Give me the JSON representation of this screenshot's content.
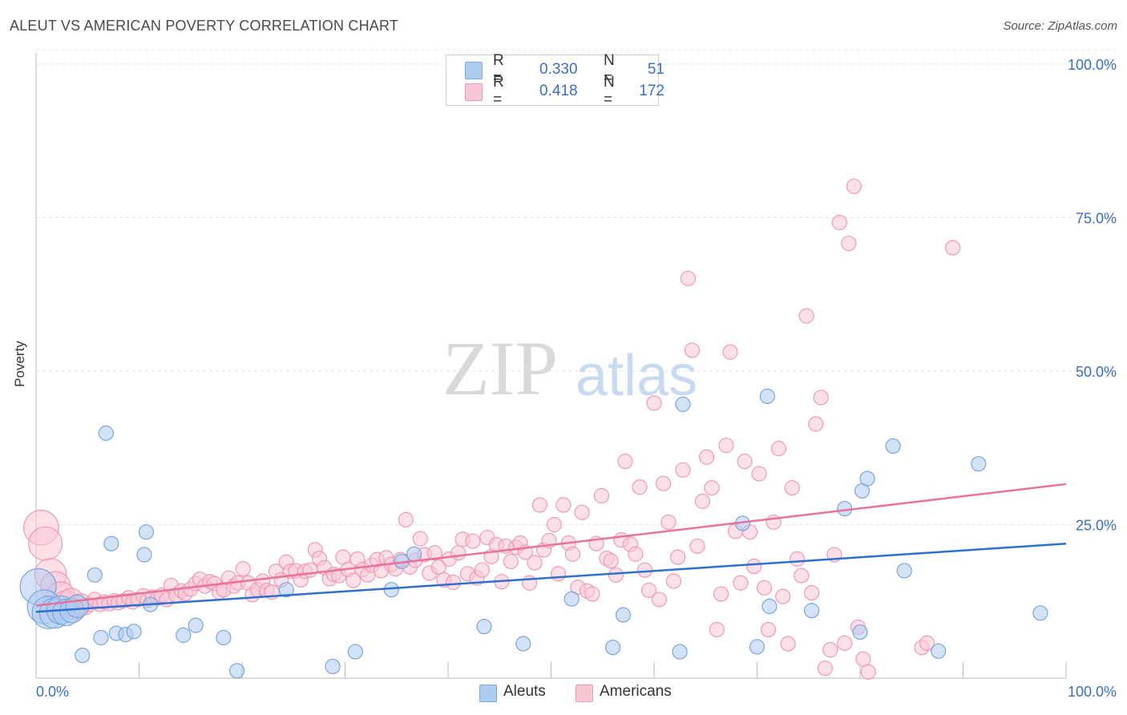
{
  "title": "ALEUT VS AMERICAN POVERTY CORRELATION CHART",
  "source": "Source: ZipAtlas.com",
  "legend": [
    {
      "r_label": "R =",
      "r_value": "0.330",
      "n_label": "N =",
      "n_value": "51",
      "color": "#aecbf0",
      "border": "#7aa6dc"
    },
    {
      "r_label": "R =",
      "r_value": "0.418",
      "n_label": "N =",
      "n_value": "172",
      "color": "#f9c6d6",
      "border": "#ee9ab5"
    }
  ],
  "bottom_legend": [
    "Aleuts",
    "Americans"
  ],
  "watermark": {
    "zip": "ZIP",
    "atlas": "atlas"
  },
  "chart_data": {
    "type": "scatter",
    "title": "ALEUT VS AMERICAN POVERTY CORRELATION CHART",
    "xlabel": "",
    "ylabel": "Poverty",
    "xlim": [
      0,
      100
    ],
    "ylim": [
      0,
      100
    ],
    "x_tick_labels": [
      "0.0%",
      "100.0%"
    ],
    "y_tick_labels": [
      "25.0%",
      "50.0%",
      "75.0%",
      "100.0%"
    ],
    "y_ticks": [
      25,
      50,
      75,
      100
    ],
    "grid": true,
    "legend_position": "top-center",
    "series": [
      {
        "name": "Aleuts",
        "color": "#7aa6dc",
        "fill": "#aecbf0",
        "line_color": "#2f6fcf",
        "trend": {
          "x": [
            0,
            100
          ],
          "y": [
            10.8,
            21.9
          ]
        },
        "points": [
          [
            0.2,
            14.9
          ],
          [
            0.8,
            11.6
          ],
          [
            1.2,
            10.7
          ],
          [
            1.8,
            10.6
          ],
          [
            2.4,
            11.1
          ],
          [
            2.9,
            10.7
          ],
          [
            3.5,
            11.0
          ],
          [
            4.0,
            11.7
          ],
          [
            4.5,
            3.7
          ],
          [
            5.7,
            16.8
          ],
          [
            6.3,
            6.6
          ],
          [
            6.8,
            39.9
          ],
          [
            7.3,
            21.9
          ],
          [
            7.8,
            7.3
          ],
          [
            8.7,
            7.1
          ],
          [
            9.5,
            7.6
          ],
          [
            10.5,
            20.1
          ],
          [
            10.7,
            23.8
          ],
          [
            11.1,
            12.0
          ],
          [
            14.3,
            7.0
          ],
          [
            15.5,
            8.6
          ],
          [
            18.2,
            6.6
          ],
          [
            19.5,
            1.2
          ],
          [
            24.3,
            14.4
          ],
          [
            28.8,
            1.9
          ],
          [
            31.0,
            4.3
          ],
          [
            34.5,
            14.4
          ],
          [
            35.5,
            19.0
          ],
          [
            36.7,
            20.2
          ],
          [
            43.5,
            8.4
          ],
          [
            47.3,
            5.6
          ],
          [
            52.0,
            12.9
          ],
          [
            56.0,
            5.0
          ],
          [
            57.0,
            10.3
          ],
          [
            62.5,
            4.3
          ],
          [
            62.8,
            44.6
          ],
          [
            68.6,
            25.2
          ],
          [
            70.0,
            5.1
          ],
          [
            71.0,
            45.9
          ],
          [
            71.2,
            11.7
          ],
          [
            75.3,
            11.0
          ],
          [
            78.5,
            27.6
          ],
          [
            80.0,
            7.5
          ],
          [
            80.2,
            30.5
          ],
          [
            80.7,
            32.5
          ],
          [
            83.2,
            37.8
          ],
          [
            84.3,
            17.5
          ],
          [
            87.6,
            4.4
          ],
          [
            91.5,
            34.9
          ],
          [
            97.5,
            10.6
          ]
        ]
      },
      {
        "name": "Americans",
        "color": "#ee9ab5",
        "fill": "#f9c6d6",
        "line_color": "#e8729a",
        "trend": {
          "x": [
            0,
            100
          ],
          "y": [
            11.8,
            31.6
          ]
        },
        "points": [
          [
            0.5,
            24.5
          ],
          [
            0.9,
            21.9
          ],
          [
            1.4,
            16.9
          ],
          [
            1.9,
            14.9
          ],
          [
            2.4,
            13.4
          ],
          [
            2.9,
            12.1
          ],
          [
            3.4,
            12.6
          ],
          [
            3.8,
            11.4
          ],
          [
            4.3,
            12.0
          ],
          [
            4.8,
            11.5
          ],
          [
            5.2,
            12.0
          ],
          [
            5.7,
            12.8
          ],
          [
            6.2,
            12.0
          ],
          [
            6.6,
            12.4
          ],
          [
            7.1,
            12.1
          ],
          [
            7.6,
            12.6
          ],
          [
            8.0,
            12.3
          ],
          [
            8.5,
            12.6
          ],
          [
            9.0,
            13.1
          ],
          [
            9.4,
            12.4
          ],
          [
            9.9,
            12.8
          ],
          [
            10.4,
            13.4
          ],
          [
            10.8,
            12.7
          ],
          [
            11.3,
            13.2
          ],
          [
            11.8,
            13.0
          ],
          [
            12.2,
            13.5
          ],
          [
            12.7,
            12.8
          ],
          [
            13.1,
            15.1
          ],
          [
            13.6,
            13.5
          ],
          [
            14.1,
            14.2
          ],
          [
            14.5,
            13.8
          ],
          [
            15.0,
            14.5
          ],
          [
            15.5,
            15.4
          ],
          [
            15.9,
            16.1
          ],
          [
            16.4,
            15.0
          ],
          [
            16.9,
            15.7
          ],
          [
            17.3,
            15.4
          ],
          [
            17.8,
            14.0
          ],
          [
            18.2,
            14.4
          ],
          [
            18.7,
            16.3
          ],
          [
            19.2,
            15.0
          ],
          [
            19.6,
            15.5
          ],
          [
            20.1,
            17.8
          ],
          [
            20.6,
            15.5
          ],
          [
            21.0,
            13.6
          ],
          [
            21.5,
            14.4
          ],
          [
            22.0,
            15.8
          ],
          [
            22.4,
            14.3
          ],
          [
            22.9,
            14.0
          ],
          [
            23.3,
            17.4
          ],
          [
            23.8,
            16.0
          ],
          [
            24.3,
            18.9
          ],
          [
            24.7,
            17.4
          ],
          [
            25.2,
            17.5
          ],
          [
            25.7,
            16.0
          ],
          [
            26.1,
            17.4
          ],
          [
            26.6,
            17.6
          ],
          [
            27.1,
            20.9
          ],
          [
            27.5,
            19.5
          ],
          [
            28.0,
            18.0
          ],
          [
            28.5,
            16.2
          ],
          [
            28.9,
            16.9
          ],
          [
            29.4,
            16.7
          ],
          [
            29.8,
            19.7
          ],
          [
            30.3,
            17.7
          ],
          [
            30.8,
            15.9
          ],
          [
            31.2,
            19.4
          ],
          [
            31.7,
            17.7
          ],
          [
            32.2,
            16.8
          ],
          [
            32.6,
            18.4
          ],
          [
            33.1,
            19.3
          ],
          [
            33.5,
            17.5
          ],
          [
            34.0,
            19.6
          ],
          [
            34.5,
            18.5
          ],
          [
            34.9,
            17.8
          ],
          [
            35.4,
            19.3
          ],
          [
            35.9,
            25.8
          ],
          [
            36.3,
            18.1
          ],
          [
            36.8,
            19.2
          ],
          [
            37.3,
            22.7
          ],
          [
            37.7,
            20.1
          ],
          [
            38.2,
            17.1
          ],
          [
            38.7,
            20.4
          ],
          [
            39.1,
            18.1
          ],
          [
            39.6,
            16.0
          ],
          [
            40.1,
            19.4
          ],
          [
            40.5,
            15.6
          ],
          [
            41.0,
            20.4
          ],
          [
            41.4,
            22.6
          ],
          [
            41.9,
            17.0
          ],
          [
            42.4,
            22.3
          ],
          [
            42.8,
            16.3
          ],
          [
            43.3,
            17.6
          ],
          [
            43.8,
            22.9
          ],
          [
            44.2,
            19.8
          ],
          [
            44.7,
            21.7
          ],
          [
            45.2,
            15.7
          ],
          [
            45.6,
            21.5
          ],
          [
            46.1,
            19.0
          ],
          [
            46.6,
            21.3
          ],
          [
            47.0,
            22.0
          ],
          [
            47.5,
            20.5
          ],
          [
            47.9,
            15.5
          ],
          [
            48.4,
            18.8
          ],
          [
            48.9,
            28.2
          ],
          [
            49.3,
            20.9
          ],
          [
            49.8,
            22.4
          ],
          [
            50.3,
            25.0
          ],
          [
            50.7,
            17.0
          ],
          [
            51.2,
            28.2
          ],
          [
            51.7,
            22.0
          ],
          [
            52.1,
            20.2
          ],
          [
            52.6,
            14.8
          ],
          [
            53.0,
            27.0
          ],
          [
            53.5,
            14.2
          ],
          [
            54.0,
            13.7
          ],
          [
            54.4,
            21.9
          ],
          [
            54.9,
            29.7
          ],
          [
            55.4,
            19.5
          ],
          [
            55.8,
            19.1
          ],
          [
            56.3,
            16.8
          ],
          [
            56.8,
            22.5
          ],
          [
            57.2,
            35.3
          ],
          [
            57.7,
            21.8
          ],
          [
            58.2,
            20.2
          ],
          [
            58.6,
            31.1
          ],
          [
            59.1,
            17.6
          ],
          [
            59.5,
            14.3
          ],
          [
            60.0,
            44.8
          ],
          [
            60.5,
            12.8
          ],
          [
            60.9,
            31.7
          ],
          [
            61.4,
            25.4
          ],
          [
            61.9,
            15.8
          ],
          [
            62.3,
            19.7
          ],
          [
            62.8,
            33.9
          ],
          [
            63.3,
            65.1
          ],
          [
            63.7,
            53.4
          ],
          [
            64.2,
            21.5
          ],
          [
            64.7,
            28.8
          ],
          [
            65.1,
            36.0
          ],
          [
            65.6,
            31.0
          ],
          [
            66.1,
            7.9
          ],
          [
            66.5,
            13.7
          ],
          [
            67.0,
            37.9
          ],
          [
            67.4,
            53.1
          ],
          [
            67.9,
            23.9
          ],
          [
            68.4,
            15.5
          ],
          [
            68.8,
            35.3
          ],
          [
            69.3,
            23.8
          ],
          [
            69.7,
            18.2
          ],
          [
            70.2,
            33.3
          ],
          [
            70.7,
            14.7
          ],
          [
            71.1,
            7.9
          ],
          [
            71.6,
            25.4
          ],
          [
            72.1,
            37.4
          ],
          [
            72.5,
            13.3
          ],
          [
            73.0,
            5.6
          ],
          [
            73.4,
            31.0
          ],
          [
            73.9,
            19.4
          ],
          [
            74.3,
            16.7
          ],
          [
            74.8,
            59.0
          ],
          [
            75.3,
            13.9
          ],
          [
            75.7,
            41.4
          ],
          [
            76.2,
            45.7
          ],
          [
            76.6,
            1.6
          ],
          [
            77.1,
            4.6
          ],
          [
            77.5,
            20.1
          ],
          [
            78.0,
            74.2
          ],
          [
            78.5,
            5.7
          ],
          [
            78.9,
            70.8
          ],
          [
            79.4,
            80.1
          ],
          [
            79.8,
            8.3
          ],
          [
            80.3,
            3.1
          ],
          [
            80.8,
            1.0
          ],
          [
            86.0,
            5.0
          ],
          [
            86.5,
            5.7
          ],
          [
            89.0,
            70.1
          ]
        ]
      }
    ]
  }
}
